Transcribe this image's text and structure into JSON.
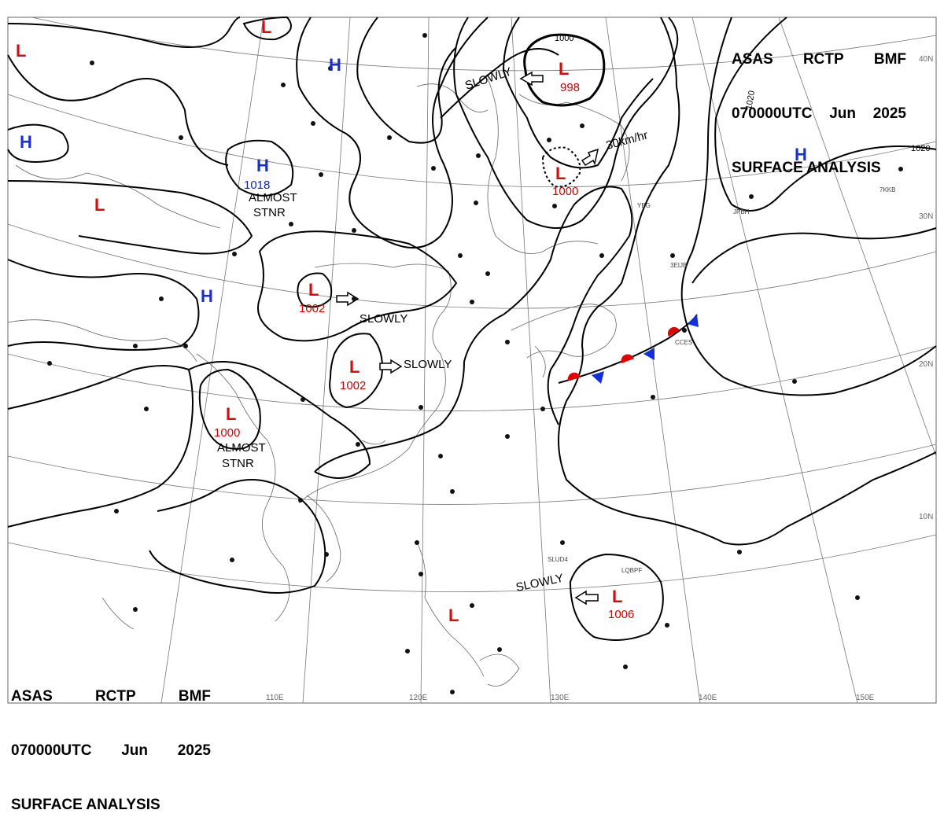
{
  "header": {
    "line1": [
      "ASAS",
      "RCTP",
      "BMF"
    ],
    "line2": [
      "070000UTC",
      "Jun",
      "2025"
    ],
    "line3": "SURFACE ANALYSIS"
  },
  "axis_labels": {
    "lon": [
      "110E",
      "120E",
      "130E",
      "140E",
      "150E"
    ],
    "lat": [
      "40N",
      "30N",
      "20N",
      "10N"
    ]
  },
  "colors": {
    "low": "#d01010",
    "high": "#1a2fd0",
    "warm_front": "#e00000",
    "cold_front": "#1030e0"
  },
  "pressure_centers": [
    {
      "type": "L",
      "value": ""
    },
    {
      "type": "L",
      "value": ""
    },
    {
      "type": "L",
      "value": ""
    },
    {
      "type": "H",
      "value": ""
    },
    {
      "type": "H",
      "value": ""
    },
    {
      "type": "H",
      "value": "1018"
    },
    {
      "type": "H",
      "value": ""
    },
    {
      "type": "L",
      "value": "998"
    },
    {
      "type": "L",
      "value": "1000"
    },
    {
      "type": "H",
      "value": ""
    },
    {
      "type": "L",
      "value": "1002"
    },
    {
      "type": "L",
      "value": "1002"
    },
    {
      "type": "L",
      "value": "1000"
    },
    {
      "type": "L",
      "value": "1006"
    },
    {
      "type": "L",
      "value": ""
    }
  ],
  "annotations": {
    "slowly": "SLOWLY",
    "almost": "ALMOST",
    "stnr": "STNR",
    "speed": "30km/hr"
  },
  "isobar_labels": [
    "1000",
    "1020",
    "1020"
  ],
  "station_labels": [
    "CCES",
    "3EIJB",
    "JPBH",
    "7KKB",
    "LQBPF",
    "SLUD4",
    "YEG"
  ]
}
